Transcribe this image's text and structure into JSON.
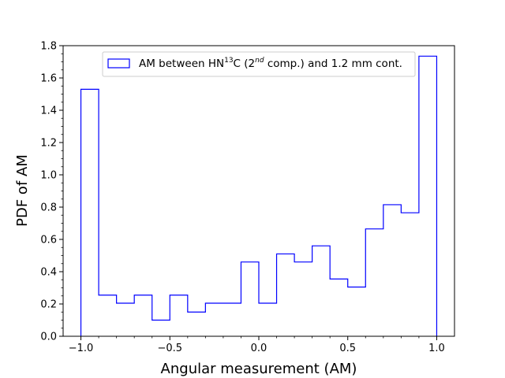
{
  "chart_data": {
    "type": "histogram",
    "xlabel": "Angular measurement (AM)",
    "ylabel": "PDF of AM",
    "xlim": [
      -1.1,
      1.1
    ],
    "ylim": [
      0.0,
      1.8
    ],
    "x_ticks": [
      "−1.0",
      "−0.5",
      "0.0",
      "0.5",
      "1.0"
    ],
    "x_tick_values": [
      -1.0,
      -0.5,
      0.0,
      0.5,
      1.0
    ],
    "y_ticks": [
      "0.0",
      "0.2",
      "0.4",
      "0.6",
      "0.8",
      "1.0",
      "1.2",
      "1.4",
      "1.6",
      "1.8"
    ],
    "y_tick_values": [
      0.0,
      0.2,
      0.4,
      0.6,
      0.8,
      1.0,
      1.2,
      1.4,
      1.6,
      1.8
    ],
    "grid": false,
    "legend_placement": "top-center",
    "bin_edges": [
      -1.0,
      -0.9,
      -0.8,
      -0.7,
      -0.6,
      -0.5,
      -0.4,
      -0.3,
      -0.2,
      -0.1,
      0.0,
      0.1,
      0.2,
      0.3,
      0.4,
      0.5,
      0.6,
      0.7,
      0.8,
      0.9,
      1.0
    ],
    "series": [
      {
        "name_main": "AM between HN",
        "name_sup": "13",
        "name_after_sup": "C (2",
        "name_sup2": "nd",
        "name_tail": " comp.) and 1.2 mm cont.",
        "color": "#0000ff",
        "values": [
          1.53,
          0.255,
          0.205,
          0.255,
          0.1,
          0.255,
          0.15,
          0.205,
          0.205,
          0.46,
          0.205,
          0.51,
          0.46,
          0.56,
          0.355,
          0.305,
          0.665,
          0.815,
          0.765,
          1.735
        ]
      }
    ]
  }
}
